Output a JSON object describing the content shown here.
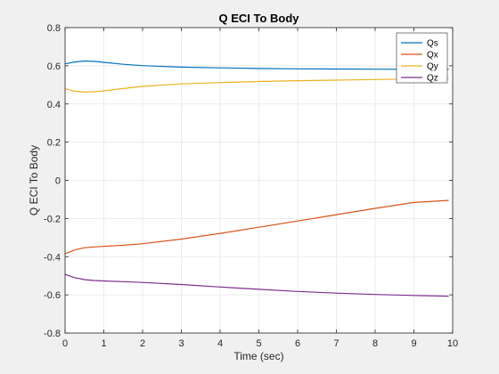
{
  "chart_data": {
    "type": "line",
    "title": "Q ECI To Body",
    "xlabel": "Time (sec)",
    "ylabel": "Q ECI To Body",
    "xlim": [
      0,
      10
    ],
    "ylim": [
      -0.8,
      0.8
    ],
    "xticks": [
      0,
      1,
      2,
      3,
      4,
      5,
      6,
      7,
      8,
      9,
      10
    ],
    "yticks": [
      -0.8,
      -0.6,
      -0.4,
      -0.2,
      0,
      0.2,
      0.4,
      0.6,
      0.8
    ],
    "xtick_labels": [
      "0",
      "1",
      "2",
      "3",
      "4",
      "5",
      "6",
      "7",
      "8",
      "9",
      "10"
    ],
    "ytick_labels": [
      "-0.8",
      "-0.6",
      "-0.4",
      "-0.2",
      "0",
      "0.2",
      "0.4",
      "0.6",
      "0.8"
    ],
    "grid": true,
    "legend_position": "top-right",
    "x": [
      0,
      0.25,
      0.5,
      0.75,
      1,
      1.5,
      2,
      3,
      4,
      5,
      6,
      7,
      8,
      9,
      9.9
    ],
    "series": [
      {
        "name": "Qs",
        "color": "#0072BD",
        "values": [
          0.61,
          0.62,
          0.625,
          0.623,
          0.618,
          0.608,
          0.601,
          0.593,
          0.589,
          0.586,
          0.584,
          0.583,
          0.582,
          0.581,
          0.581
        ]
      },
      {
        "name": "Qx",
        "color": "#D95319",
        "values": [
          -0.385,
          -0.365,
          -0.353,
          -0.349,
          -0.346,
          -0.34,
          -0.332,
          -0.308,
          -0.278,
          -0.246,
          -0.213,
          -0.18,
          -0.147,
          -0.116,
          -0.105
        ]
      },
      {
        "name": "Qy",
        "color": "#EDB120",
        "values": [
          0.48,
          0.467,
          0.462,
          0.464,
          0.469,
          0.481,
          0.492,
          0.505,
          0.512,
          0.518,
          0.522,
          0.525,
          0.528,
          0.531,
          0.533
        ]
      },
      {
        "name": "Qz",
        "color": "#7E2F8E",
        "values": [
          -0.493,
          -0.51,
          -0.52,
          -0.525,
          -0.527,
          -0.531,
          -0.535,
          -0.546,
          -0.559,
          -0.571,
          -0.582,
          -0.591,
          -0.598,
          -0.603,
          -0.607
        ]
      }
    ]
  }
}
